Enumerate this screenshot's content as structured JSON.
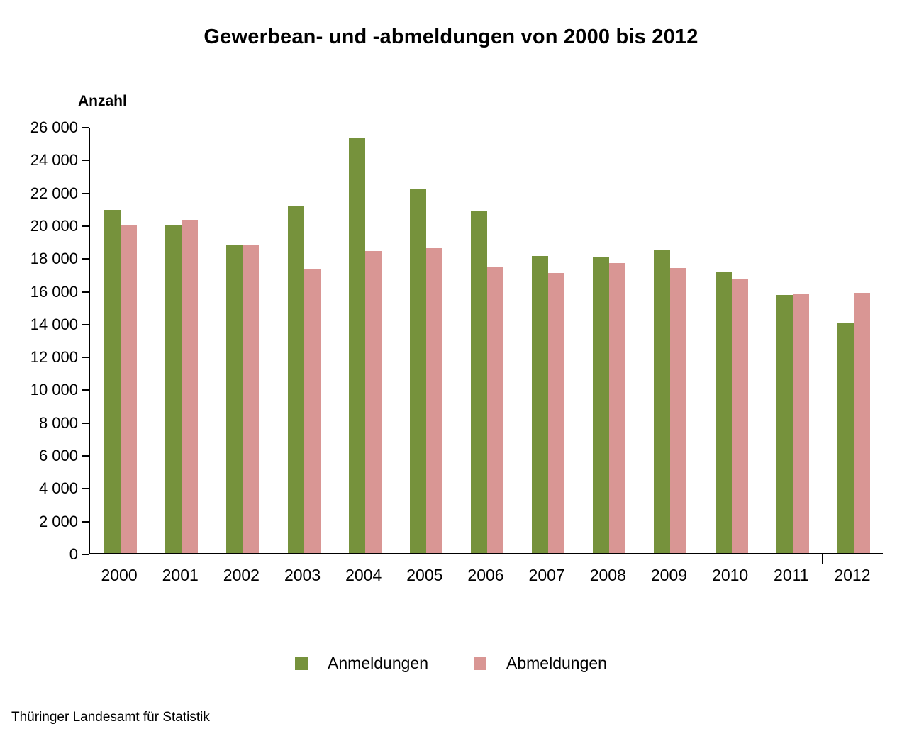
{
  "title": "Gewerbean- und -abmeldungen von 2000 bis 2012",
  "y_axis_title": "Anzahl",
  "footer": "Thüringer Landesamt für Statistik",
  "legend": {
    "anmeldungen_label": "Anmeldungen",
    "abmeldungen_label": "Abmeldungen"
  },
  "colors": {
    "anmeldungen": "#76923C",
    "abmeldungen": "#D99694",
    "axis": "#000000"
  },
  "chart_data": {
    "type": "bar",
    "title": "Gewerbean- und -abmeldungen von 2000 bis 2012",
    "xlabel": "",
    "ylabel": "Anzahl",
    "categories": [
      "2000",
      "2001",
      "2002",
      "2003",
      "2004",
      "2005",
      "2006",
      "2007",
      "2008",
      "2009",
      "2010",
      "2011",
      "2012"
    ],
    "series": [
      {
        "name": "Anmeldungen",
        "color": "#76923C",
        "values": [
          20900,
          20000,
          18800,
          21100,
          25300,
          22200,
          20800,
          18100,
          18000,
          18450,
          17150,
          15700,
          14050
        ]
      },
      {
        "name": "Abmeldungen",
        "color": "#D99694",
        "values": [
          20000,
          20300,
          18800,
          17300,
          18400,
          18550,
          17400,
          17050,
          17650,
          17350,
          16650,
          15750,
          15850
        ]
      }
    ],
    "ylim": [
      0,
      26000
    ],
    "ytick_step": 2000,
    "ytick_labels": [
      "0",
      "2 000",
      "4 000",
      "6 000",
      "8 000",
      "10 000",
      "12 000",
      "14 000",
      "16 000",
      "18 000",
      "20 000",
      "22 000",
      "24 000",
      "26 000"
    ],
    "grid": false,
    "legend_position": "bottom"
  }
}
